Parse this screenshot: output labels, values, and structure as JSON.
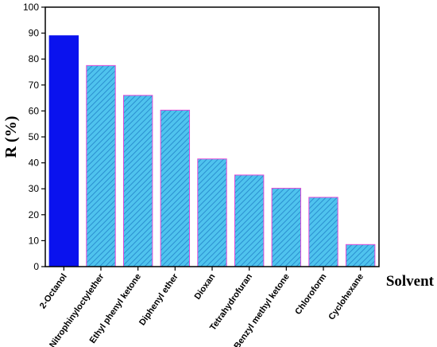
{
  "chart_data": {
    "type": "bar",
    "title": "",
    "xlabel": "Solvent",
    "ylabel": "R (%)",
    "ylim": [
      0,
      100
    ],
    "yticks": [
      0,
      10,
      20,
      30,
      40,
      50,
      60,
      70,
      80,
      90,
      100
    ],
    "categories": [
      "2-Octanol",
      "Nitrophinyloctylether",
      "Ethyl phenyl ketone",
      "Diphenyl ether",
      "Dioxan",
      "Tetrahydrofuran",
      "Benzyl methyl ketone",
      "Chloroform",
      "Cyclohexane"
    ],
    "values": [
      89,
      77.5,
      66,
      60.3,
      41.5,
      35.3,
      30.2,
      26.7,
      8.5
    ],
    "grid": false,
    "colors": {
      "highlight_bar": "#0a12ee",
      "bar_fill": "#4fc3ee",
      "bar_hatch": "#2a8fd0",
      "bar_edge": "#e04ad8"
    }
  }
}
